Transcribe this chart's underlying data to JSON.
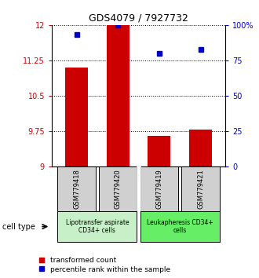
{
  "title": "GDS4079 / 7927732",
  "samples": [
    "GSM779418",
    "GSM779420",
    "GSM779419",
    "GSM779421"
  ],
  "bar_values": [
    11.1,
    12.0,
    9.65,
    9.78
  ],
  "percentile_values": [
    93,
    100,
    80,
    83
  ],
  "ylim_left": [
    9,
    12
  ],
  "ylim_right": [
    0,
    100
  ],
  "yticks_left": [
    9,
    9.75,
    10.5,
    11.25,
    12
  ],
  "yticks_right": [
    0,
    25,
    50,
    75,
    100
  ],
  "ytick_labels_left": [
    "9",
    "9.75",
    "10.5",
    "11.25",
    "12"
  ],
  "ytick_labels_right": [
    "0",
    "25",
    "50",
    "75",
    "100%"
  ],
  "bar_color": "#cc0000",
  "dot_color": "#0000cc",
  "bar_width": 0.55,
  "group_labels": [
    "Lipotransfer aspirate\nCD34+ cells",
    "Leukapheresis CD34+\ncells"
  ],
  "group_color_0": "#c8f0c8",
  "group_color_1": "#66ee66",
  "cell_type_label": "cell type",
  "legend_bar_label": "transformed count",
  "legend_dot_label": "percentile rank within the sample",
  "tick_box_bg": "#d0d0d0",
  "title_fontsize": 9,
  "axis_fontsize": 7,
  "label_fontsize": 6,
  "group_fontsize": 5.5,
  "legend_fontsize": 6.5
}
